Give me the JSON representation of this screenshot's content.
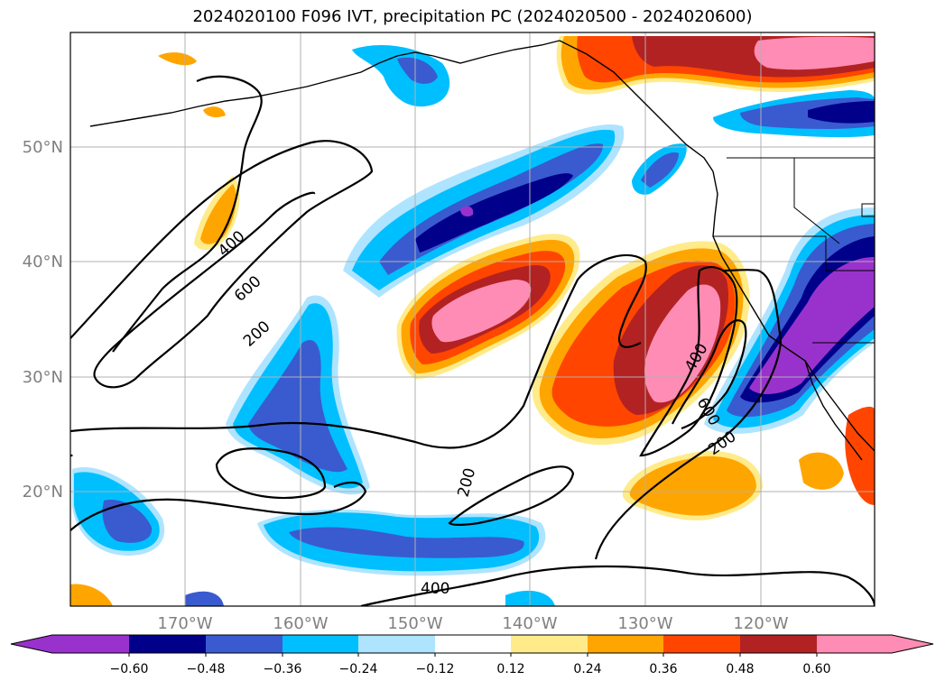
{
  "title": "2024020100 F096 IVT, precipitation PC (2024020500 - 2024020600)",
  "map": {
    "lat_labels": [
      "50°N",
      "40°N",
      "30°N",
      "20°N"
    ],
    "lon_labels": [
      "170°W",
      "160°W",
      "150°W",
      "140°W",
      "130°W",
      "120°W"
    ],
    "contour_labels": [
      "400",
      "600",
      "200",
      "400",
      "600",
      "200",
      "200",
      "400"
    ],
    "grid": true,
    "projection_extent": {
      "lon": [
        -180,
        -110
      ],
      "lat": [
        10,
        60
      ]
    }
  },
  "colorbar": {
    "orientation": "horizontal",
    "extend": "both",
    "tick_labels": [
      "−0.60",
      "−0.48",
      "−0.36",
      "−0.24",
      "−0.12",
      "0.12",
      "0.24",
      "0.36",
      "0.48",
      "0.60"
    ],
    "colors": [
      "#9932cc",
      "#00008b",
      "#3a5bcf",
      "#00bfff",
      "#aee4ff",
      "#ffffff",
      "#ffeb8a",
      "#ffa500",
      "#ff4500",
      "#b22222",
      "#ff8cb4"
    ]
  }
}
